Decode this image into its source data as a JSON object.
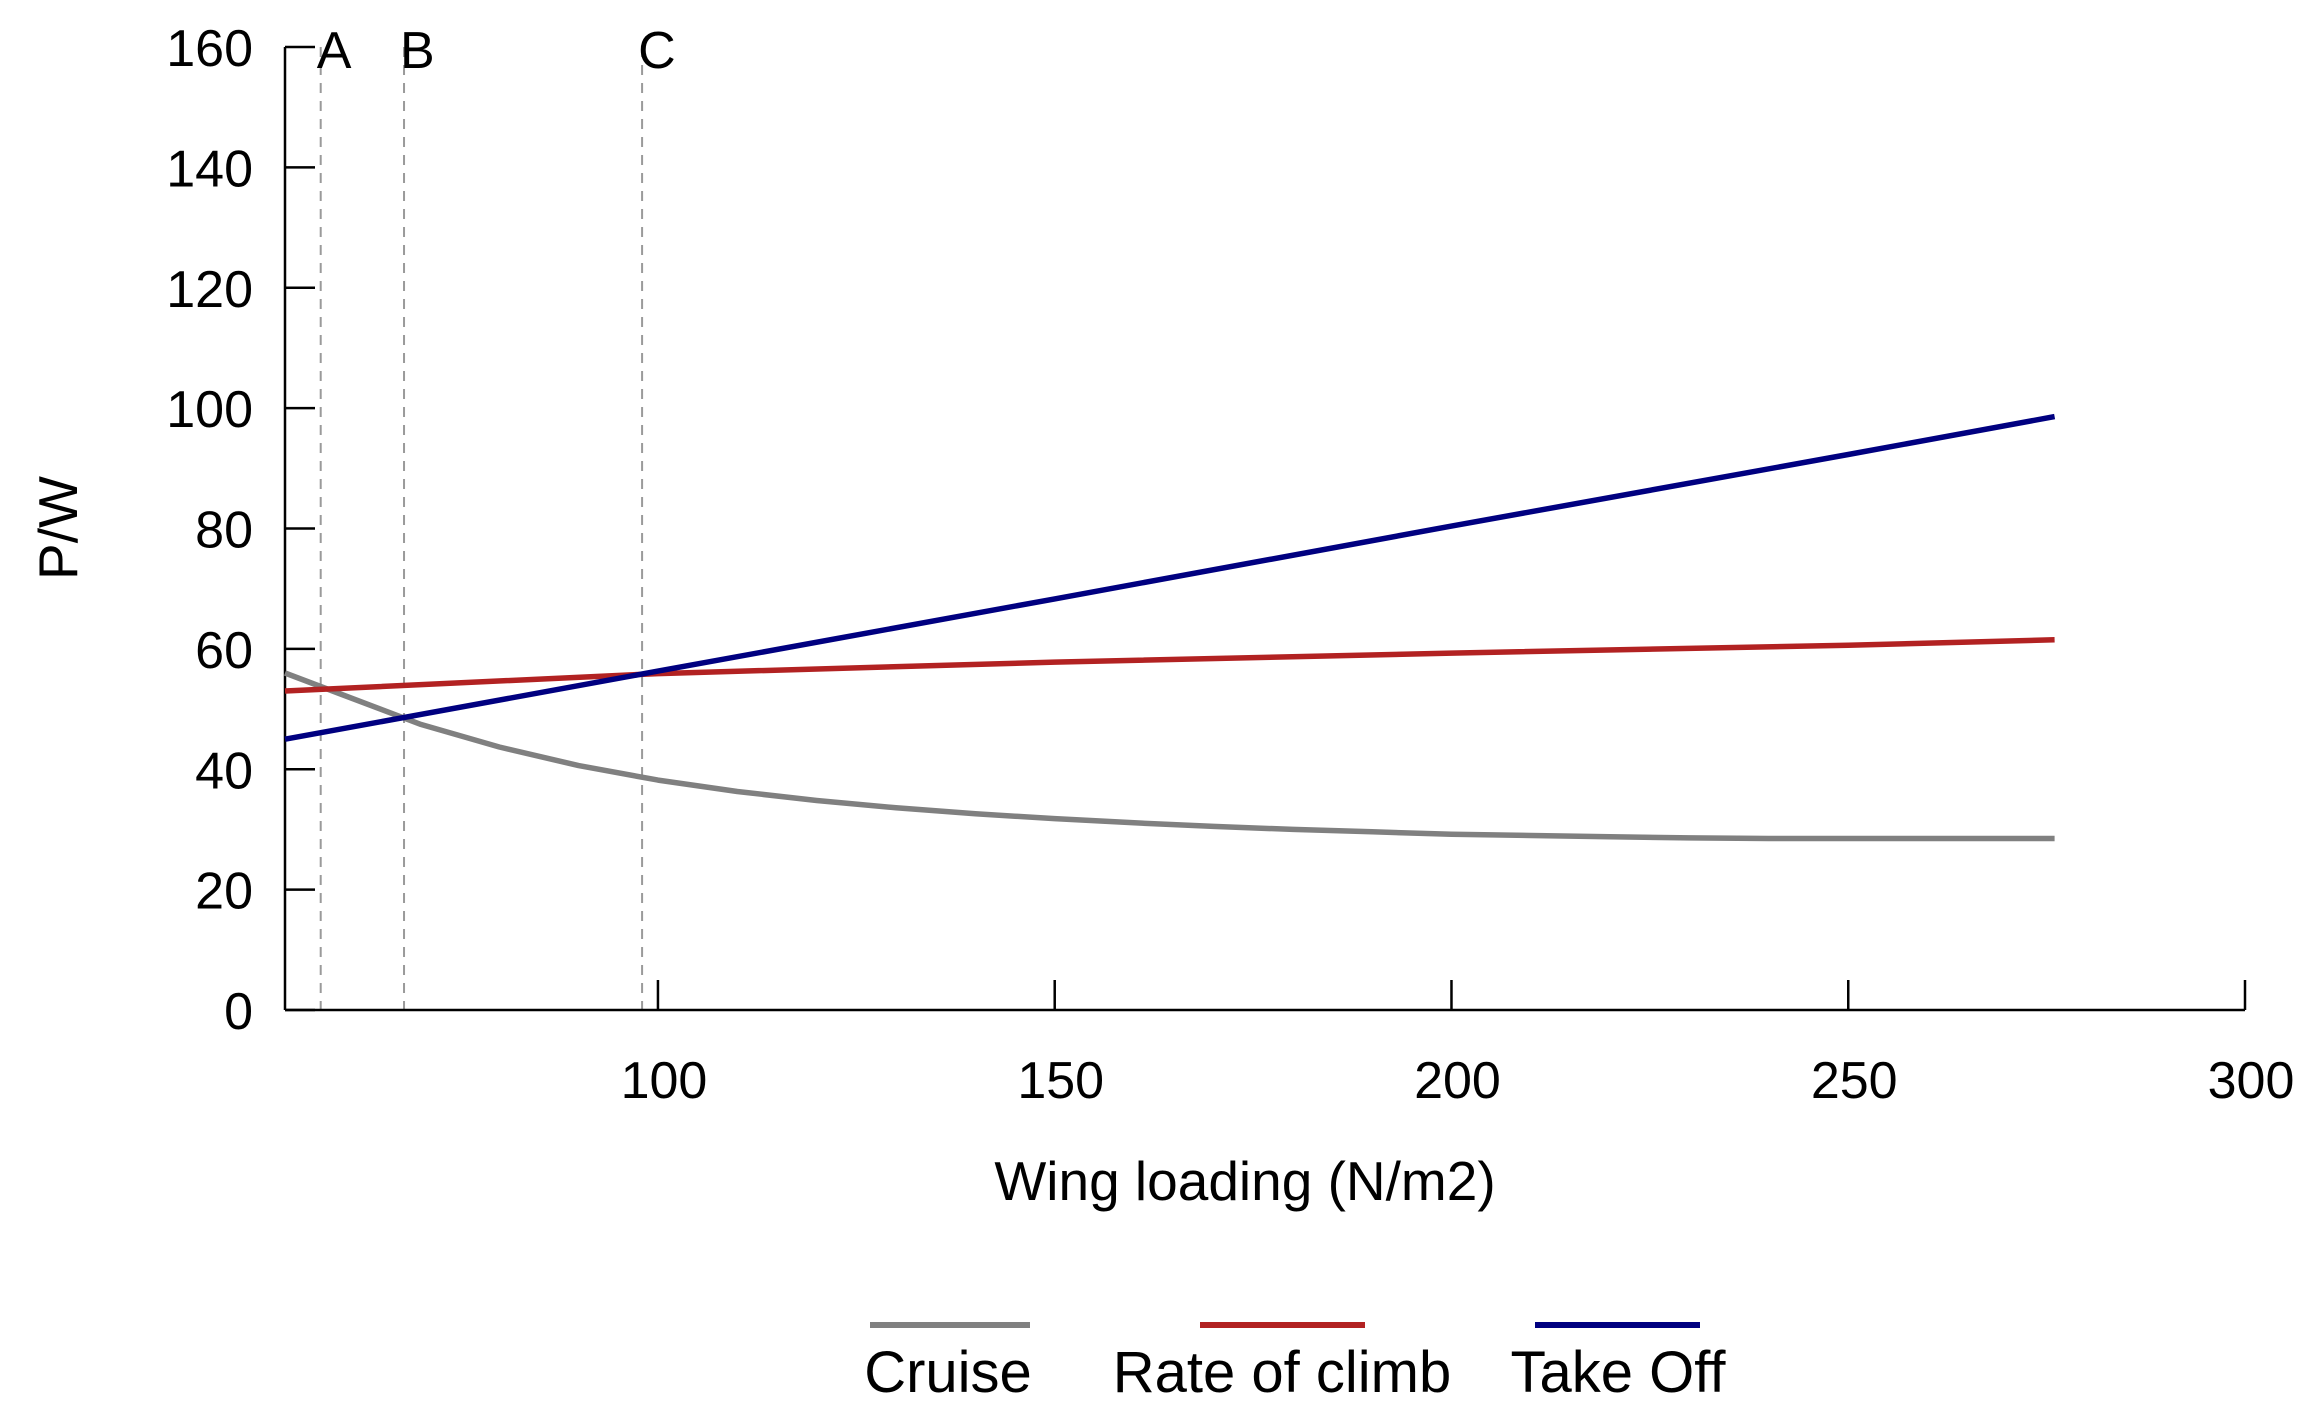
{
  "chart_data": {
    "type": "line",
    "title": "",
    "xlabel": "Wing loading (N/m2)",
    "ylabel": "P/W",
    "xlim": [
      53,
      300
    ],
    "ylim": [
      0,
      160
    ],
    "xticks": [
      100,
      150,
      200,
      250,
      300
    ],
    "yticks": [
      0,
      20,
      40,
      60,
      80,
      100,
      120,
      140,
      160
    ],
    "grid": false,
    "legend_position": "bottom",
    "reference_lines": [
      {
        "label": "A",
        "x": 57.5
      },
      {
        "label": "B",
        "x": 68
      },
      {
        "label": "C",
        "x": 98
      }
    ],
    "series": [
      {
        "name": "Cruise",
        "color": "#808080",
        "x": [
          53,
          60,
          70,
          80,
          90,
          100,
          110,
          120,
          130,
          140,
          150,
          160,
          170,
          180,
          190,
          200,
          210,
          220,
          230,
          240,
          250,
          260,
          276
        ],
        "y": [
          56,
          52.5,
          47.5,
          43.7,
          40.6,
          38.2,
          36.3,
          34.8,
          33.6,
          32.6,
          31.8,
          31.1,
          30.5,
          30,
          29.6,
          29.2,
          29,
          28.8,
          28.6,
          28.5,
          28.5,
          28.5,
          28.5
        ]
      },
      {
        "name": "Rate of climb",
        "color": "#B22222",
        "x": [
          53,
          100,
          150,
          200,
          250,
          276
        ],
        "y": [
          53,
          55.9,
          57.8,
          59.3,
          60.6,
          61.5
        ]
      },
      {
        "name": "Take Off",
        "color": "#000080",
        "x": [
          53,
          100,
          150,
          200,
          250,
          276
        ],
        "y": [
          45,
          56.3,
          68.3,
          80.4,
          92.3,
          98.6
        ]
      }
    ]
  }
}
